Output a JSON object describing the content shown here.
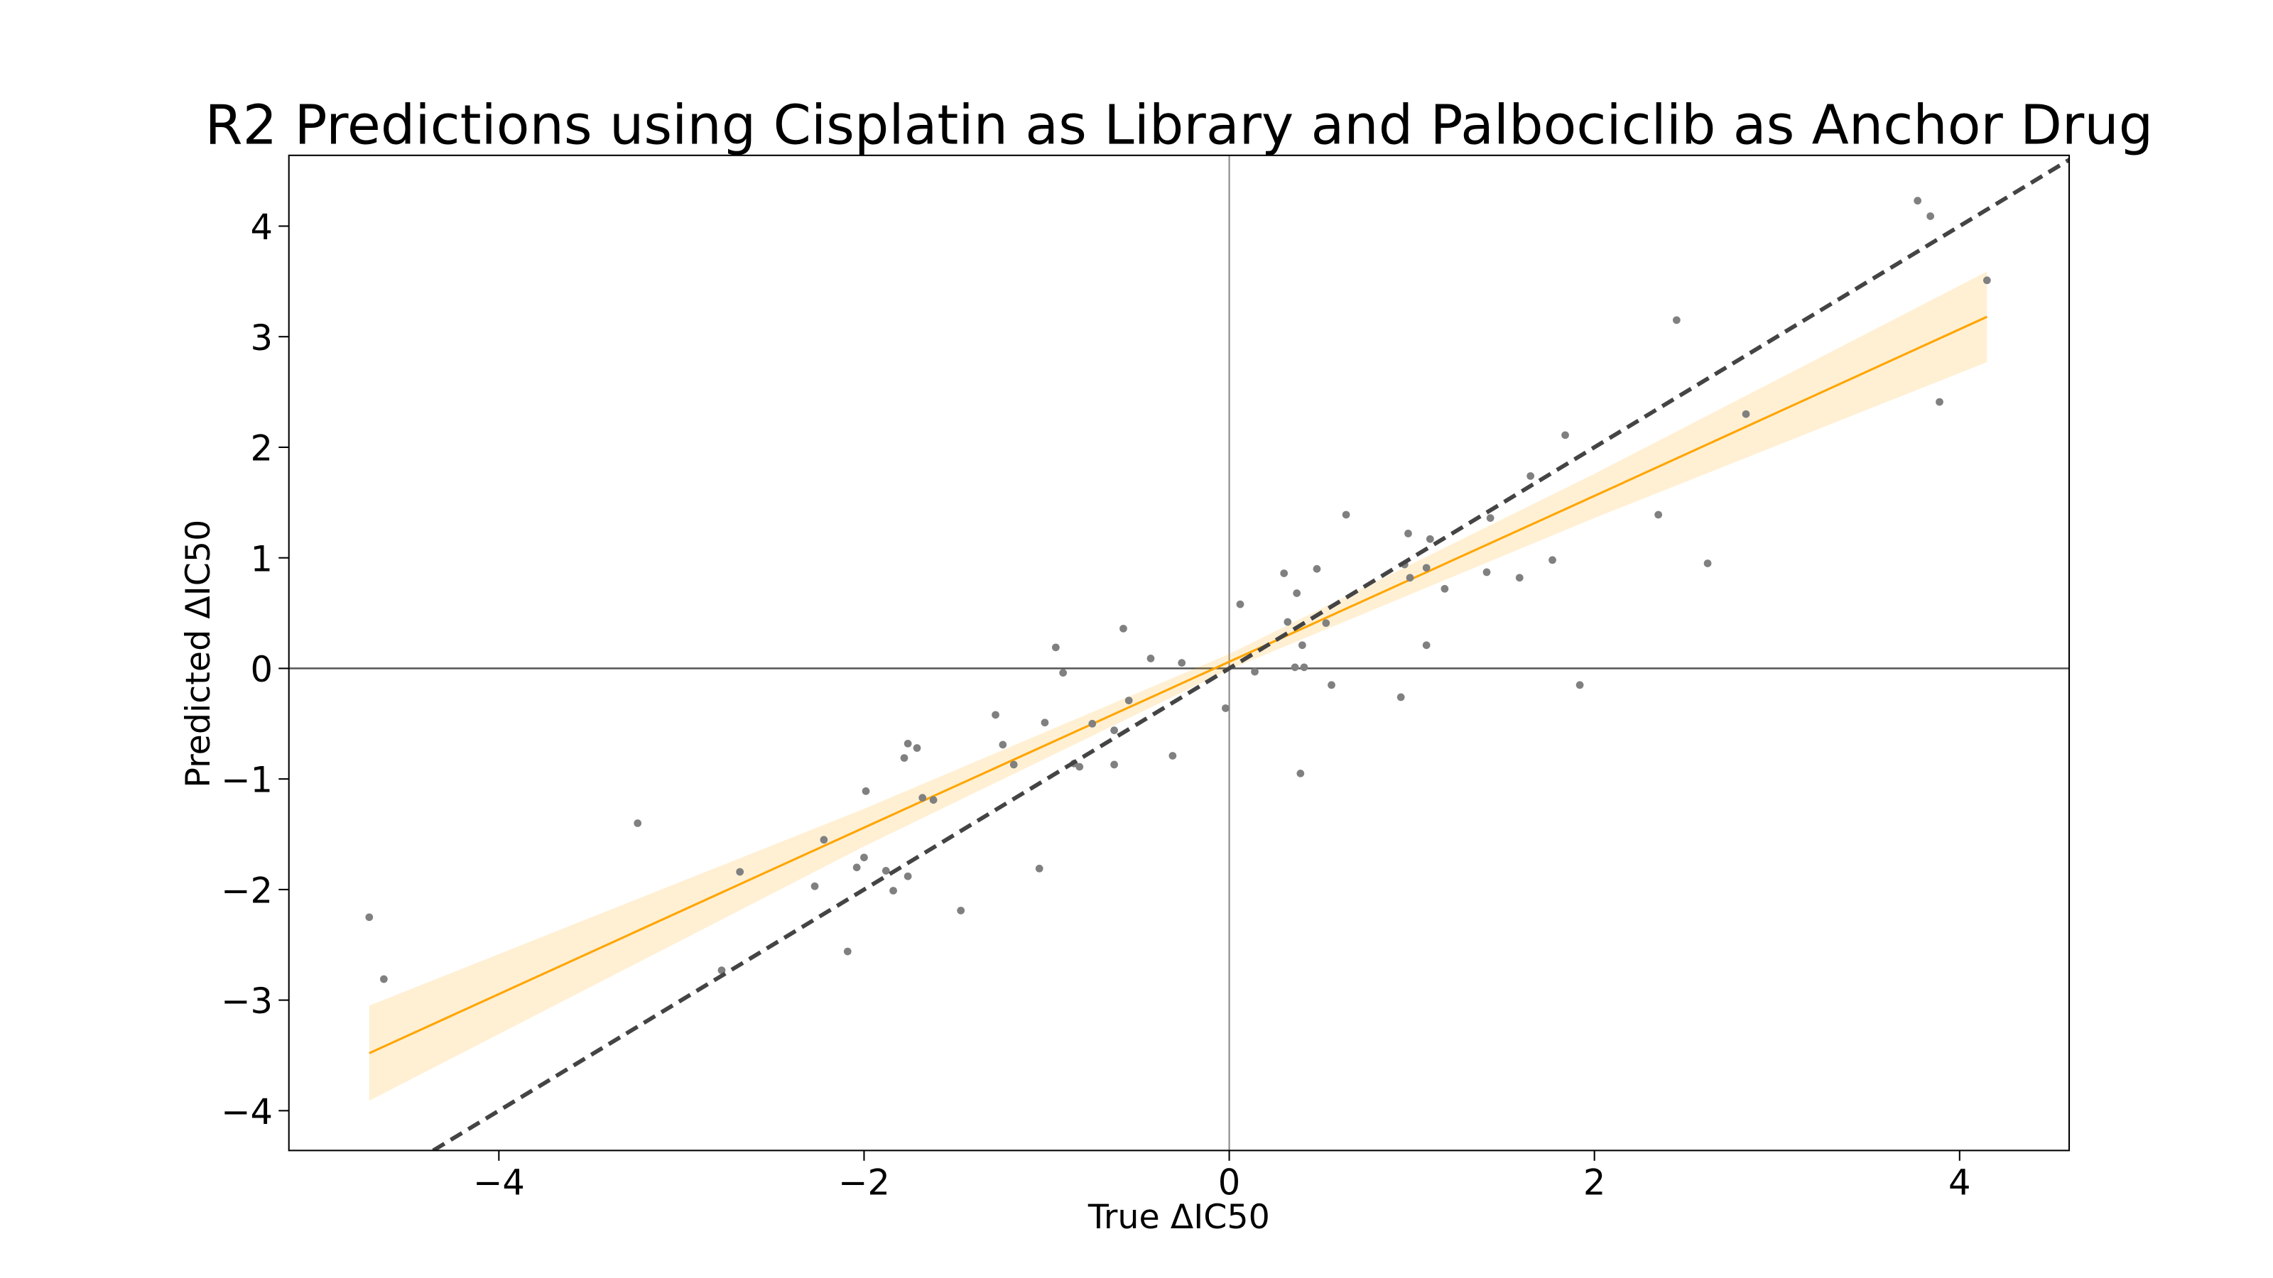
{
  "chart_data": {
    "type": "scatter",
    "title": "R2 Predictions using Cisplatin as Library and Palbociclib as Anchor Drug",
    "xlabel": "True ΔIC50",
    "ylabel": "Predicted ΔIC50",
    "xlim": [
      -5.15,
      4.6
    ],
    "ylim": [
      -4.36,
      4.64
    ],
    "xticks": [
      {
        "value": -4,
        "label": "−4"
      },
      {
        "value": -2,
        "label": "−2"
      },
      0,
      2,
      4
    ],
    "yticks": [
      {
        "value": -4,
        "label": "−4"
      },
      {
        "value": -3,
        "label": "−3"
      },
      {
        "value": -2,
        "label": "−2"
      },
      {
        "value": -1,
        "label": "−1"
      },
      0,
      1,
      2,
      3,
      4
    ],
    "zero_lines": true,
    "points": {
      "color": "#808080",
      "x": [
        -4.71,
        -4.63,
        -3.24,
        -2.68,
        -2.78,
        -2.27,
        -2.22,
        -2.09,
        -2.04,
        -1.99,
        -2.0,
        -1.88,
        -1.84,
        -1.78,
        -1.76,
        -1.71,
        -1.76,
        -1.68,
        -1.62,
        -1.47,
        -1.28,
        -1.24,
        -1.18,
        -1.04,
        -1.01,
        -0.95,
        -0.91,
        -0.85,
        -0.82,
        -0.75,
        -0.63,
        -0.63,
        -0.58,
        -0.55,
        -0.43,
        -0.31,
        -0.26,
        -0.02,
        0.06,
        0.14,
        0.3,
        0.32,
        0.36,
        0.37,
        0.39,
        0.41,
        0.4,
        0.48,
        0.53,
        0.56,
        0.64,
        0.94,
        0.98,
        0.99,
        0.96,
        1.08,
        1.08,
        1.1,
        1.18,
        1.41,
        1.43,
        1.59,
        1.65,
        1.77,
        1.84,
        1.92,
        2.35,
        2.45,
        2.62,
        2.83,
        3.77,
        3.84,
        3.89,
        4.15
      ],
      "y": [
        -2.25,
        -2.81,
        -1.4,
        -1.84,
        -2.73,
        -1.97,
        -1.55,
        -2.56,
        -1.8,
        -1.11,
        -1.71,
        -1.83,
        -2.01,
        -0.81,
        -0.68,
        -0.72,
        -1.88,
        -1.17,
        -1.19,
        -2.19,
        -0.42,
        -0.69,
        -0.87,
        -1.81,
        -0.49,
        0.19,
        -0.04,
        -0.86,
        -0.89,
        -0.5,
        -0.87,
        -0.56,
        0.36,
        -0.29,
        0.09,
        -0.79,
        0.05,
        -0.36,
        0.58,
        -0.03,
        0.86,
        0.42,
        0.01,
        0.68,
        -0.95,
        0.01,
        0.21,
        0.9,
        0.41,
        -0.15,
        1.39,
        -0.26,
        1.22,
        0.82,
        0.94,
        0.21,
        0.91,
        1.17,
        0.72,
        0.87,
        1.36,
        0.82,
        1.74,
        0.98,
        2.11,
        -0.15,
        1.39,
        3.15,
        0.95,
        2.3,
        4.23,
        4.09,
        2.41,
        3.51
      ]
    },
    "fit": {
      "color": "#ffa500",
      "x": [
        -4.71,
        -2,
        0,
        2,
        4.15
      ],
      "y": [
        -3.48,
        -1.44,
        0.06,
        1.56,
        3.18
      ],
      "ci_lower": [
        -3.91,
        -1.61,
        -0.01,
        1.36,
        2.77
      ],
      "ci_upper": [
        -3.05,
        -1.27,
        0.13,
        1.76,
        3.59
      ]
    },
    "identity_line": {
      "color": "#444444",
      "x": [
        -4.36,
        4.6
      ],
      "y": [
        -4.36,
        4.6
      ]
    }
  }
}
